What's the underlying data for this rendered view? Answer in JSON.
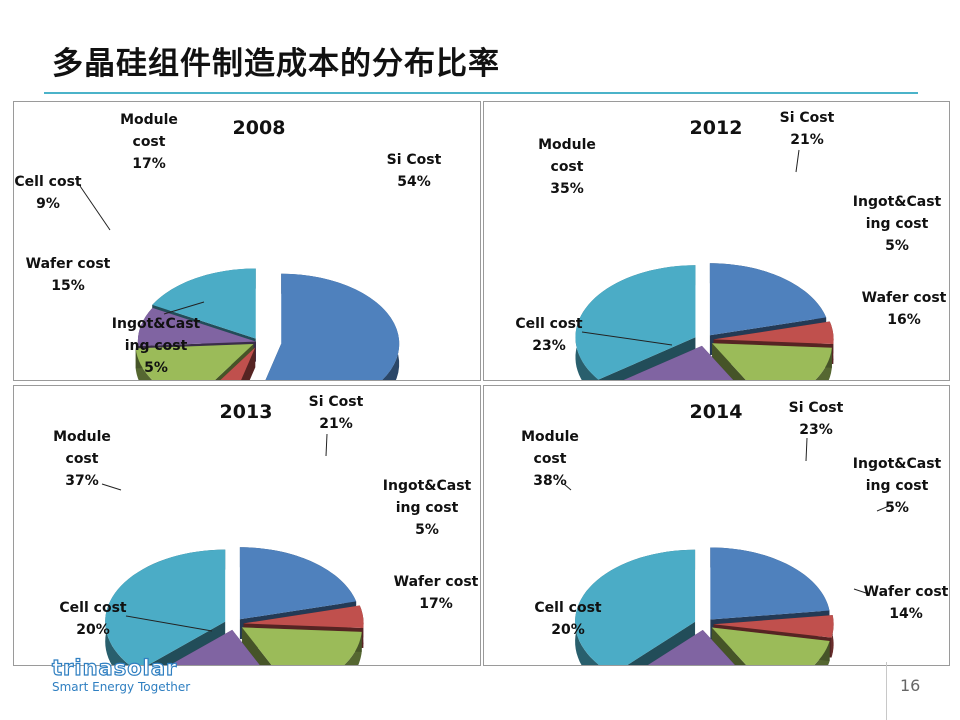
{
  "slide": {
    "title": "多晶硅组件制造成本的分布比率",
    "page_number": "16",
    "logo_text": "trinasolar",
    "logo_tagline": "Smart Energy Together",
    "accent_color": "#4bb3c9"
  },
  "chart_data": [
    {
      "type": "pie",
      "title": "2008",
      "unit": "%",
      "categories": [
        "Si Cost",
        "Ingot&Casting cost",
        "Wafer cost",
        "Cell cost",
        "Module cost"
      ],
      "values": [
        54,
        5,
        15,
        9,
        17
      ],
      "labels": [
        [
          "Si Cost",
          "54%"
        ],
        [
          "Ingot&Cast",
          "ing cost",
          "5%"
        ],
        [
          "Wafer cost",
          "15%"
        ],
        [
          "Cell cost",
          "9%"
        ],
        [
          "Module",
          "cost",
          "17%"
        ]
      ],
      "colors": [
        "#4f81bd",
        "#c0504d",
        "#9bbb59",
        "#8064a2",
        "#4bacc6"
      ]
    },
    {
      "type": "pie",
      "title": "2012",
      "unit": "%",
      "categories": [
        "Si Cost",
        "Ingot&Casting cost",
        "Wafer cost",
        "Cell cost",
        "Module cost"
      ],
      "values": [
        21,
        5,
        16,
        23,
        35
      ],
      "labels": [
        [
          "Si Cost",
          "21%"
        ],
        [
          "Ingot&Cast",
          "ing cost",
          "5%"
        ],
        [
          "Wafer cost",
          "16%"
        ],
        [
          "Cell cost",
          "23%"
        ],
        [
          "Module",
          "cost",
          "35%"
        ]
      ],
      "colors": [
        "#4f81bd",
        "#c0504d",
        "#9bbb59",
        "#8064a2",
        "#4bacc6"
      ]
    },
    {
      "type": "pie",
      "title": "2013",
      "unit": "%",
      "categories": [
        "Si Cost",
        "Ingot&Casting cost",
        "Wafer cost",
        "Cell cost",
        "Module cost"
      ],
      "values": [
        21,
        5,
        17,
        20,
        37
      ],
      "labels": [
        [
          "Si Cost",
          "21%"
        ],
        [
          "Ingot&Cast",
          "ing cost",
          "5%"
        ],
        [
          "Wafer cost",
          "17%"
        ],
        [
          "Cell cost",
          "20%"
        ],
        [
          "Module",
          "cost",
          "37%"
        ]
      ],
      "colors": [
        "#4f81bd",
        "#c0504d",
        "#9bbb59",
        "#8064a2",
        "#4bacc6"
      ]
    },
    {
      "type": "pie",
      "title": "2014",
      "unit": "%",
      "categories": [
        "Si Cost",
        "Ingot&Casting cost",
        "Wafer cost",
        "Cell cost",
        "Module cost"
      ],
      "values": [
        23,
        5,
        14,
        20,
        38
      ],
      "labels": [
        [
          "Si Cost",
          "23%"
        ],
        [
          "Ingot&Cast",
          "ing cost",
          "5%"
        ],
        [
          "Wafer cost",
          "14%"
        ],
        [
          "Cell cost",
          "20%"
        ],
        [
          "Module",
          "cost",
          "38%"
        ]
      ],
      "colors": [
        "#4f81bd",
        "#c0504d",
        "#9bbb59",
        "#8064a2",
        "#4bacc6"
      ]
    }
  ]
}
